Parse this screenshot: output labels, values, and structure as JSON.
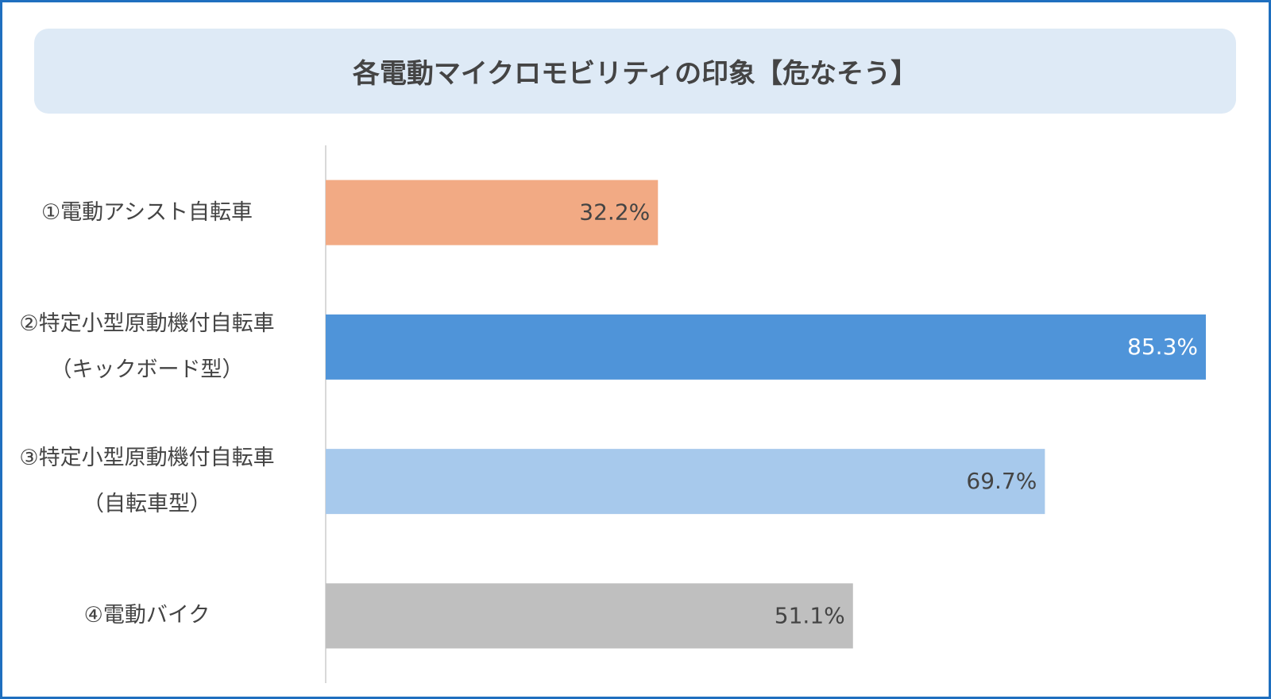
{
  "chart_data": {
    "type": "bar",
    "orientation": "horizontal",
    "title": "各電動マイクロモビリティの印象【危なそう】",
    "categories": [
      "①電動アシスト自転車",
      "②特定小型原動機付自転車\n（キックボード型）",
      "③特定小型原動機付自転車\n（自転車型）",
      "④電動バイク"
    ],
    "values": [
      32.2,
      85.3,
      69.7,
      51.1
    ],
    "value_labels": [
      "32.2%",
      "85.3%",
      "69.7%",
      "51.1%"
    ],
    "colors": [
      "#f2aa84",
      "#4f94d9",
      "#a7c9ec",
      "#bfbfbf"
    ]
  }
}
